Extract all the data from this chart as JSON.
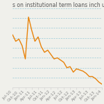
{
  "title": "s on institutional term loans inch up in",
  "background_color": "#f0f0eb",
  "line_color": "#e8820a",
  "grid_color": "#90c8d8",
  "x_labels": [
    "Jul-10",
    "Oct-10",
    "Jan-11",
    "Apr-11",
    "Jul-11",
    "Oct-11",
    "Jan-12",
    "Apr-12",
    "Jul-12",
    "Oct-12",
    "Jan-13",
    "Apr-13",
    "Jul-13",
    "Oct-13",
    "Jan-14"
  ],
  "values": [
    4.4,
    4.1,
    4.2,
    3.9,
    3.3,
    5.2,
    4.6,
    4.1,
    4.3,
    3.85,
    3.6,
    3.7,
    3.5,
    3.3,
    3.35,
    3.25,
    3.15,
    2.9,
    2.95,
    2.7,
    2.85,
    2.8,
    2.75,
    2.65,
    2.5,
    2.5,
    2.4,
    2.25,
    2.15
  ],
  "ylim": [
    2.0,
    5.6
  ],
  "title_fontsize": 5.5,
  "tick_fontsize": 4.2,
  "title_color": "#555555",
  "tick_color": "#888888",
  "n_gridlines": 9,
  "line_width": 1.0
}
